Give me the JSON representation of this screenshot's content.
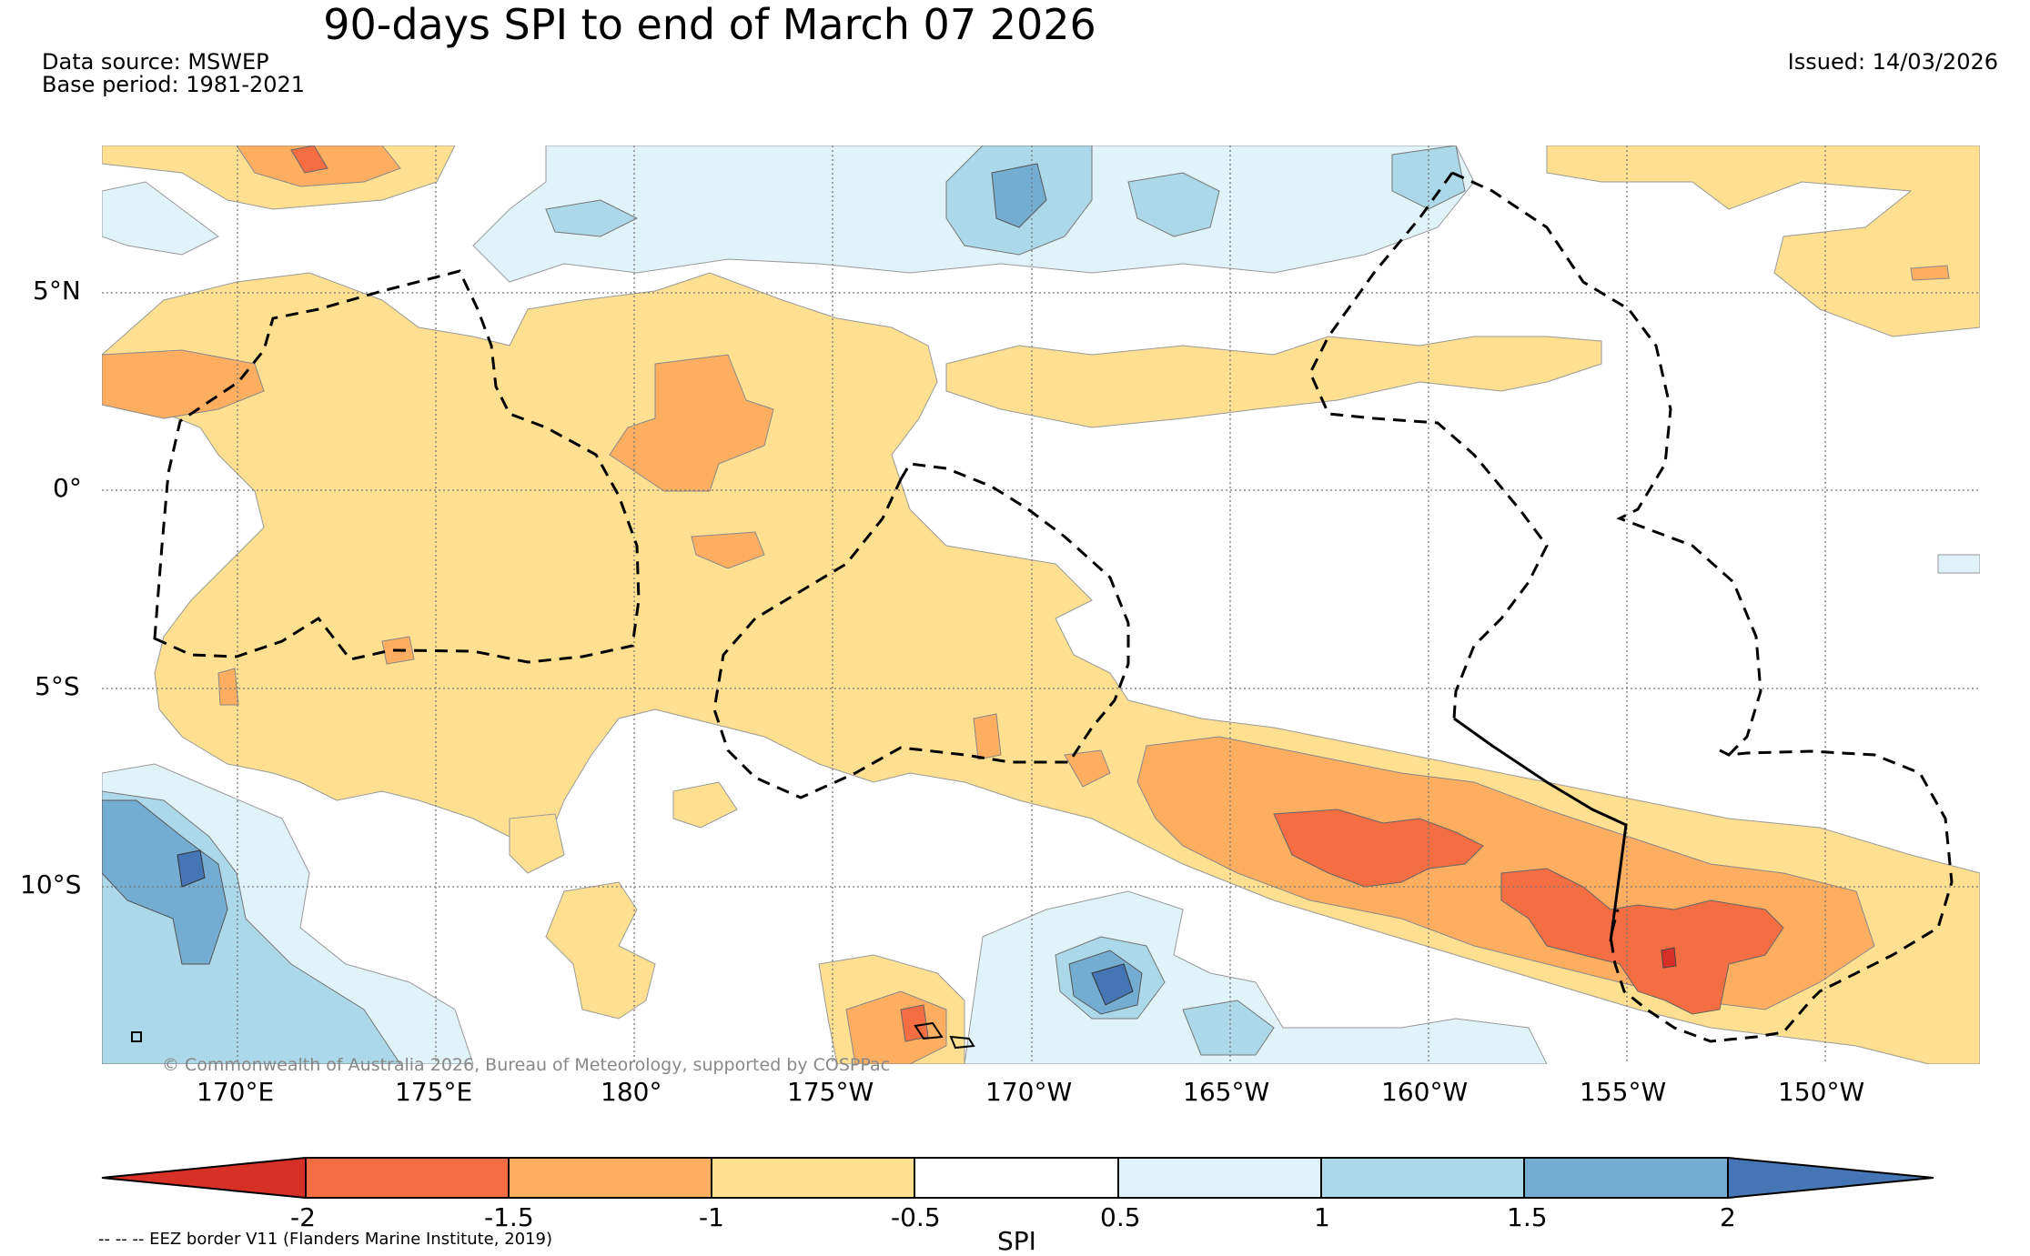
{
  "title": "90-days SPI to end of March 07 2026",
  "data_source": "Data source: MSWEP",
  "base_period": "Base period: 1981-2021",
  "issued": "Issued: 14/03/2026",
  "copyright": "© Commonwealth of Australia 2026, Bureau of Meteorology, supported by COSPPac",
  "eez_legend": "-- -- -- EEZ border V11 (Flanders Marine Institute, 2019)",
  "colorbar_label": "SPI",
  "lat_labels": [
    "5°N",
    "0°",
    "5°S",
    "10°S"
  ],
  "lon_labels": [
    "170°E",
    "175°E",
    "180°",
    "175°W",
    "170°W",
    "165°W",
    "160°W",
    "155°W",
    "150°W"
  ],
  "colorbar": {
    "ticks": [
      "-2",
      "-1.5",
      "-1",
      "-0.5",
      "0.5",
      "1",
      "1.5",
      "2"
    ],
    "colors": {
      "below_-2": "#d73027",
      "-2_-1.5": "#f46d43",
      "-1.5_-1": "#fdae61",
      "-1_-0.5": "#fee090",
      "-0.5_0.5": "#ffffff",
      "0.5_1": "#e0f3f8",
      "1_1.5": "#abd9e9",
      "1.5_2": "#74add1",
      "above_2": "#4575b4"
    }
  }
}
